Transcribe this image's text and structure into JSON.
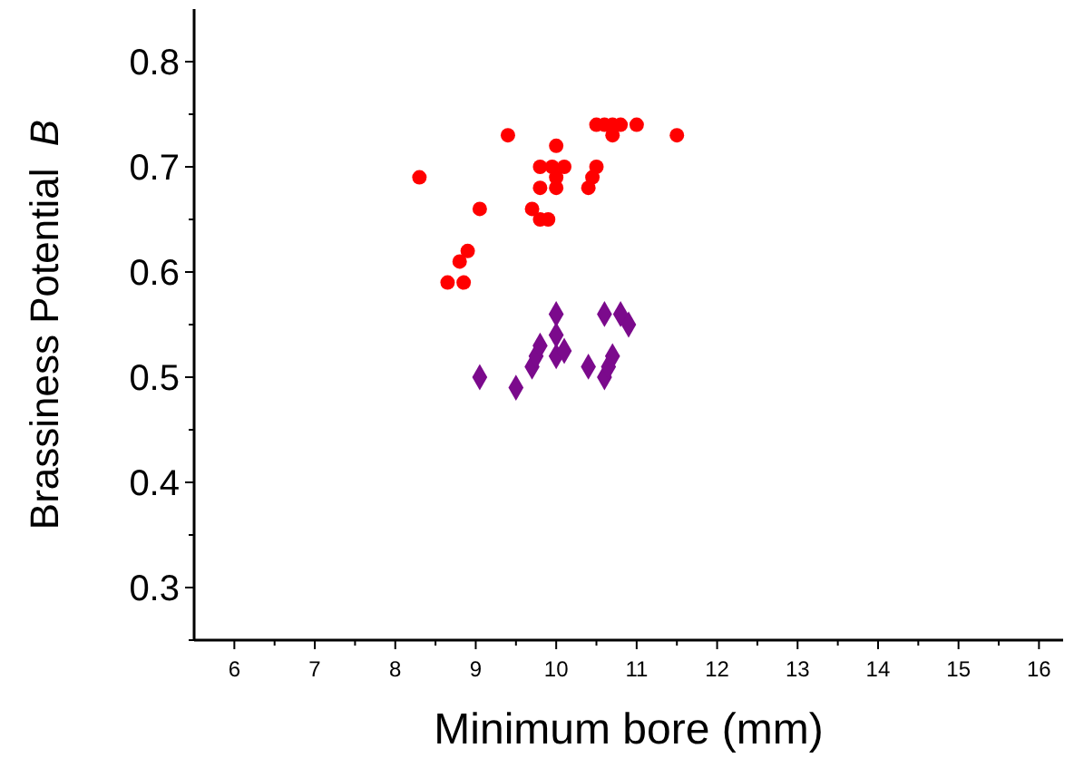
{
  "chart_data": {
    "type": "scatter",
    "xlabel": "Minimum bore (mm)",
    "ylabel": "Brassiness Potential  B",
    "xlim": [
      5.5,
      16.3
    ],
    "ylim": [
      0.25,
      0.85
    ],
    "xticks": [
      6,
      {
        "value": 6.5,
        "label": null
      },
      7,
      {
        "value": 7.5,
        "label": null
      },
      8,
      {
        "value": 8.5,
        "label": null
      },
      9,
      {
        "value": 9.5,
        "label": null
      },
      10,
      {
        "value": 10.5,
        "label": null
      },
      11,
      {
        "value": 11.5,
        "label": null
      },
      12,
      {
        "value": 12.5,
        "label": null
      },
      13,
      {
        "value": 13.5,
        "label": null
      },
      14,
      {
        "value": 14.5,
        "label": null
      },
      15,
      {
        "value": 15.5,
        "label": null
      },
      16
    ],
    "yticks": [
      {
        "value": 0.25,
        "label": null
      },
      0.3,
      {
        "value": 0.35,
        "label": null
      },
      0.4,
      {
        "value": 0.45,
        "label": null
      },
      0.5,
      {
        "value": 0.55,
        "label": null
      },
      0.6,
      {
        "value": 0.65,
        "label": null
      },
      0.7,
      {
        "value": 0.75,
        "label": null
      },
      0.8
    ],
    "series": [
      {
        "color": "#ff0000",
        "marker": "circle",
        "x": [
          8.3,
          8.65,
          8.85,
          8.8,
          8.9,
          9.05,
          9.4,
          9.7,
          9.8,
          9.9,
          9.8,
          9.8,
          10.0,
          10.0,
          10.0,
          10.1,
          9.95,
          10.4,
          10.45,
          10.5,
          10.5,
          10.6,
          10.7,
          10.8,
          10.7,
          11.0,
          11.5
        ],
        "values": [
          0.69,
          0.59,
          0.59,
          0.61,
          0.62,
          0.66,
          0.73,
          0.66,
          0.65,
          0.65,
          0.7,
          0.68,
          0.72,
          0.69,
          0.68,
          0.7,
          0.7,
          0.68,
          0.69,
          0.7,
          0.74,
          0.74,
          0.74,
          0.74,
          0.73,
          0.74,
          0.73
        ]
      },
      {
        "color": "#7b0a8c",
        "marker": "diamond",
        "x": [
          9.05,
          9.5,
          9.7,
          9.75,
          9.8,
          10.0,
          10.0,
          10.0,
          10.1,
          10.4,
          10.6,
          10.6,
          10.7,
          10.8,
          10.9,
          10.65
        ],
        "values": [
          0.5,
          0.49,
          0.51,
          0.52,
          0.53,
          0.56,
          0.54,
          0.52,
          0.525,
          0.51,
          0.5,
          0.56,
          0.52,
          0.56,
          0.55,
          0.51
        ]
      }
    ]
  }
}
